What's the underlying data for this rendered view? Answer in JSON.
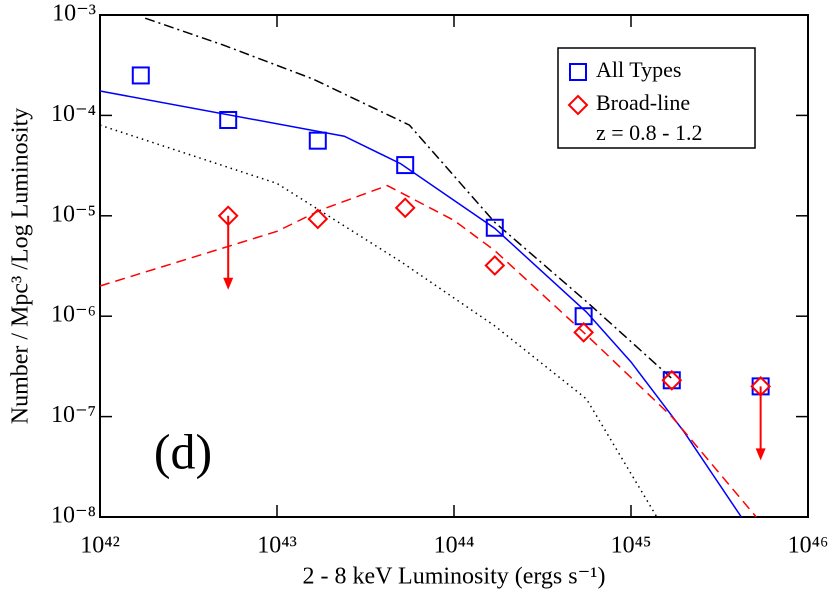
{
  "chart_data": {
    "type": "scatter",
    "xlabel": "2 - 8 keV Luminosity  (ergs s⁻¹)",
    "ylabel": "Number / Mpc³ /Log Luminosity",
    "annotation": "(d)",
    "legend_note": "z = 0.8 - 1.2",
    "legend": "upper right",
    "xlog": true,
    "ylog": true,
    "xlim": [
      1e+42,
      1e+46
    ],
    "ylim": [
      1e-08,
      0.001
    ],
    "xticks": [
      {
        "value": 1e+42,
        "label": "10⁴²"
      },
      {
        "value": 1e+43,
        "label": "10⁴³"
      },
      {
        "value": 1e+44,
        "label": "10⁴⁴"
      },
      {
        "value": 1e+45,
        "label": "10⁴⁵"
      },
      {
        "value": 1e+46,
        "label": "10⁴⁶"
      }
    ],
    "yticks": [
      {
        "value": 1e-08,
        "label": "10⁻⁸"
      },
      {
        "value": 1e-07,
        "label": "10⁻⁷"
      },
      {
        "value": 1e-06,
        "label": "10⁻⁶"
      },
      {
        "value": 1e-05,
        "label": "10⁻⁵"
      },
      {
        "value": 0.0001,
        "label": "10⁻⁴"
      },
      {
        "value": 0.001,
        "label": "10⁻³"
      }
    ],
    "series": [
      {
        "name": "All Types",
        "color": "#0000ff",
        "marker": "square",
        "x": [
          1.7e+42,
          5.3e+42,
          1.7e+43,
          5.3e+43,
          1.7e+44,
          5.4e+44,
          1.7e+45,
          5.4e+45
        ],
        "values": [
          0.00025,
          9e-05,
          5.6e-05,
          3.2e-05,
          7.6e-06,
          1e-06,
          2.3e-07,
          2e-07
        ],
        "upper_limits": [
          false,
          false,
          false,
          false,
          false,
          false,
          false,
          false
        ]
      },
      {
        "name": "Broad-line",
        "color": "#ff0000",
        "marker": "diamond",
        "x": [
          5.3e+42,
          1.7e+43,
          5.3e+43,
          1.7e+44,
          5.4e+44,
          1.7e+45,
          5.4e+45
        ],
        "values": [
          1e-05,
          9.3e-06,
          1.2e-05,
          3.2e-06,
          6.9e-07,
          2.3e-07,
          2e-07
        ],
        "upper_limits": [
          true,
          false,
          false,
          false,
          false,
          false,
          true
        ]
      }
    ],
    "lines": [
      {
        "color": "#0000ff",
        "dash": "solid",
        "x": [
          1e+42,
          2.4e+43,
          5e+43,
          1.7e+44,
          5.6e+44,
          1e+45,
          2e+45,
          4.2e+45
        ],
        "values": [
          0.000175,
          6.2e-05,
          3.3e-05,
          7.5e-06,
          1.1e-06,
          3.5e-07,
          7e-08,
          1e-08
        ]
      },
      {
        "color": "#ff0000",
        "dash": "dashed",
        "x": [
          1e+42,
          1e+43,
          1.78e+43,
          4.2e+43,
          1e+44,
          1.7e+44,
          5.6e+44,
          1.7e+45,
          5.1e+45
        ],
        "values": [
          2e-06,
          7e-06,
          1.15e-05,
          2e-05,
          9e-06,
          4.5e-06,
          6.5e-07,
          1e-07,
          1e-08
        ]
      },
      {
        "color": "#000000",
        "dash": "dashdot",
        "x": [
          1.8e+42,
          5e+42,
          1.6e+43,
          5.6e+43,
          1.7e+44,
          5.6e+44,
          1.7e+45
        ],
        "values": [
          0.00093,
          0.0005,
          0.00023,
          8e-05,
          8.6e-06,
          1.4e-06,
          2.4e-07
        ]
      },
      {
        "color": "#000000",
        "dash": "dotted",
        "x": [
          1e+42,
          1e+43,
          5e+43,
          1.7e+44,
          5.6e+44,
          1.4e+45
        ],
        "values": [
          8e-05,
          2.1e-05,
          3.5e-06,
          8e-07,
          1.5e-07,
          1e-08
        ]
      }
    ]
  }
}
